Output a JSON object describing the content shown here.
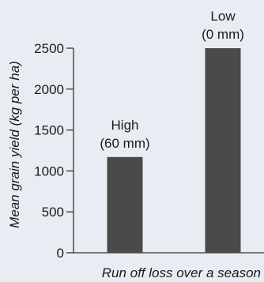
{
  "chart_data": {
    "type": "bar",
    "categories": [
      "High (60 mm)",
      "Low (0 mm)"
    ],
    "bar_labels": [
      {
        "line1": "High",
        "line2": "(60 mm)"
      },
      {
        "line1": "Low",
        "line2": "(0 mm)"
      }
    ],
    "values": [
      1170,
      2500
    ],
    "xlabel": "Run off loss over a season",
    "ylabel": "Mean grain yield (kg per ha)",
    "ylim": [
      0,
      2500
    ],
    "yticks": [
      0,
      500,
      1000,
      1500,
      2000,
      2500
    ],
    "grid": false,
    "colors": {
      "bar": "#4a4a4a",
      "axis": "#333333",
      "background": "#e9edf3"
    }
  }
}
